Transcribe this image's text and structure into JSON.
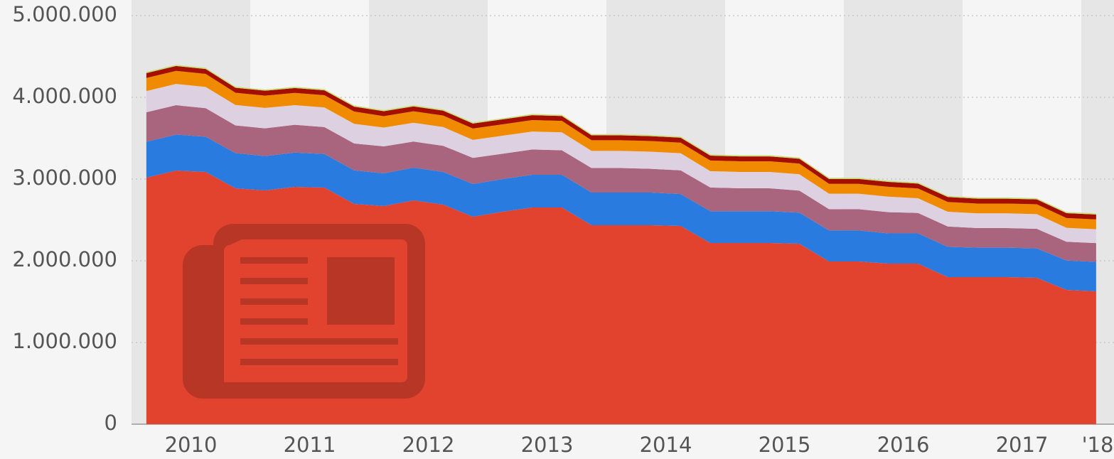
{
  "chart_data": {
    "type": "stacked_area",
    "x_labels": [
      "2010",
      "2011",
      "2012",
      "2013",
      "2014",
      "2015",
      "2016",
      "2017",
      "'18"
    ],
    "points_per_label": 4,
    "ylim": [
      0,
      5000000
    ],
    "yticks": [
      0,
      {
        "value": 1000000,
        "label": "1.000.000"
      },
      {
        "value": 2000000,
        "label": "2.000.000"
      },
      {
        "value": 3000000,
        "label": "3.000.000"
      },
      {
        "value": 4000000,
        "label": "4.000.000"
      },
      {
        "value": 5000000,
        "label": "5.000.000"
      }
    ],
    "grid": true,
    "series": [
      {
        "color": "#e2432f",
        "values": [
          3017000,
          3104000,
          3087000,
          2887000,
          2861000,
          2904000,
          2896000,
          2696000,
          2670000,
          2739000,
          2687000,
          2539000,
          2600000,
          2652000,
          2652000,
          2435000,
          2435000,
          2435000,
          2426000,
          2217000,
          2217000,
          2217000,
          2209000,
          1991000,
          1991000,
          1965000,
          1965000,
          1800000,
          1800000,
          1800000,
          1791000,
          1643000,
          1626000
        ]
      },
      {
        "color": "#2a7be0",
        "values": [
          440000,
          440000,
          430000,
          430000,
          420000,
          420000,
          410000,
          410000,
          400000,
          400000,
          400000,
          400000,
          400000,
          400000,
          400000,
          400000,
          400000,
          400000,
          390000,
          390000,
          390000,
          390000,
          380000,
          380000,
          380000,
          370000,
          370000,
          370000,
          360000,
          360000,
          360000,
          360000,
          360000
        ]
      },
      {
        "color": "#a9657e",
        "values": [
          360000,
          360000,
          350000,
          340000,
          340000,
          340000,
          330000,
          330000,
          330000,
          320000,
          320000,
          320000,
          310000,
          310000,
          300000,
          300000,
          300000,
          290000,
          290000,
          290000,
          280000,
          280000,
          270000,
          260000,
          260000,
          260000,
          250000,
          250000,
          240000,
          240000,
          240000,
          230000,
          230000
        ]
      },
      {
        "color": "#ddd1e1",
        "values": [
          260000,
          260000,
          260000,
          250000,
          250000,
          240000,
          240000,
          240000,
          230000,
          230000,
          230000,
          220000,
          220000,
          220000,
          220000,
          210000,
          210000,
          210000,
          210000,
          200000,
          200000,
          200000,
          200000,
          190000,
          190000,
          190000,
          180000,
          180000,
          180000,
          180000,
          180000,
          170000,
          170000
        ]
      },
      {
        "color": "#f08a00",
        "values": [
          160000,
          160000,
          160000,
          150000,
          150000,
          150000,
          150000,
          150000,
          140000,
          140000,
          140000,
          140000,
          140000,
          140000,
          140000,
          130000,
          130000,
          130000,
          130000,
          130000,
          130000,
          130000,
          130000,
          120000,
          120000,
          120000,
          120000,
          120000,
          120000,
          120000,
          120000,
          120000,
          120000
        ]
      },
      {
        "color": "#a50f00",
        "values": [
          60000,
          60000,
          60000,
          60000,
          60000,
          60000,
          60000,
          60000,
          60000,
          60000,
          60000,
          60000,
          60000,
          60000,
          60000,
          60000,
          60000,
          60000,
          60000,
          60000,
          60000,
          60000,
          60000,
          60000,
          60000,
          60000,
          60000,
          60000,
          60000,
          60000,
          60000,
          60000,
          60000
        ]
      },
      {
        "color": "#c9df7c",
        "values": [
          15000,
          15000,
          15000,
          15000,
          15000,
          15000,
          15000,
          15000,
          15000,
          15000,
          15000,
          15000,
          15000,
          15000,
          15000,
          15000,
          15000,
          15000,
          15000,
          15000,
          15000,
          15000,
          15000,
          15000,
          15000,
          15000,
          15000,
          15000,
          15000,
          15000,
          15000,
          15000,
          15000
        ]
      }
    ]
  }
}
